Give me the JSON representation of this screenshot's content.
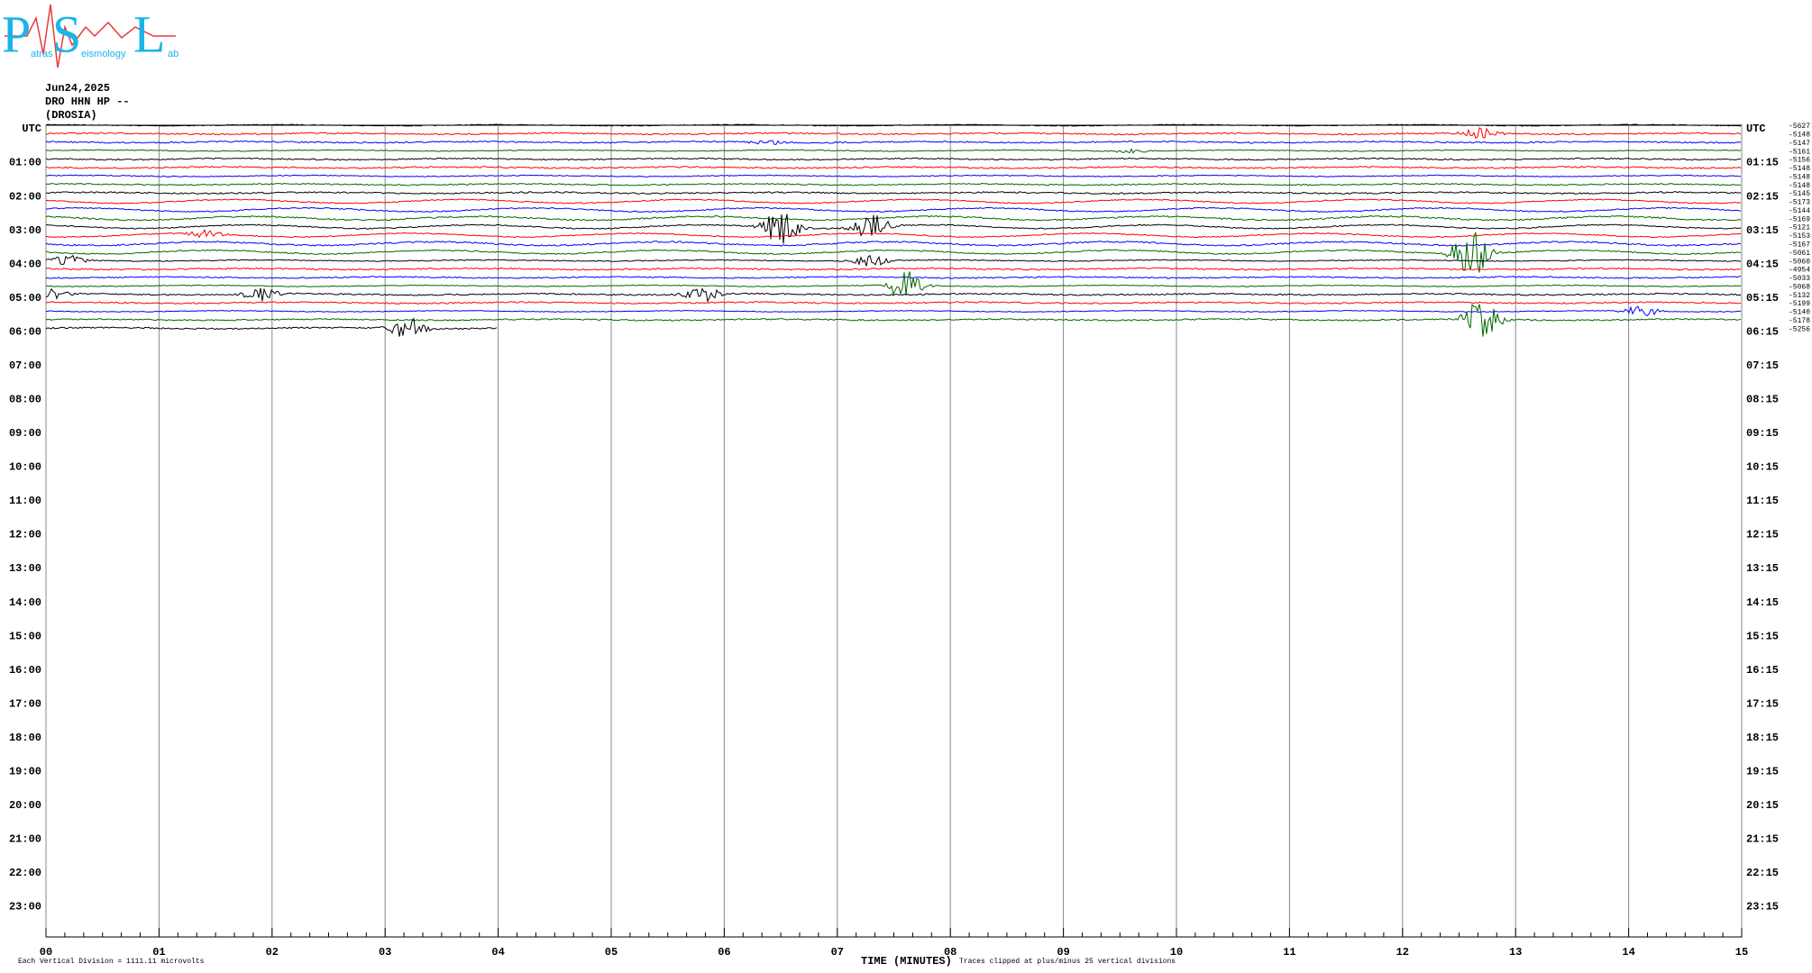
{
  "logo": {
    "letters": [
      "P",
      "S",
      "L"
    ],
    "words": [
      "atras",
      "eismology",
      "ab"
    ]
  },
  "header": {
    "date": "Jun24,2025",
    "station": "DRO HHN HP --",
    "location": "(DROSIA)"
  },
  "left_labels": [
    "UTC",
    "01:00",
    "02:00",
    "03:00",
    "04:00",
    "05:00",
    "06:00",
    "07:00",
    "08:00",
    "09:00",
    "10:00",
    "11:00",
    "12:00",
    "13:00",
    "14:00",
    "15:00",
    "16:00",
    "17:00",
    "18:00",
    "19:00",
    "20:00",
    "21:00",
    "22:00",
    "23:00"
  ],
  "right_labels": [
    "UTC",
    "01:15",
    "02:15",
    "03:15",
    "04:15",
    "05:15",
    "06:15",
    "07:15",
    "08:15",
    "09:15",
    "10:15",
    "11:15",
    "12:15",
    "13:15",
    "14:15",
    "15:15",
    "16:15",
    "17:15",
    "18:15",
    "19:15",
    "20:15",
    "21:15",
    "22:15",
    "23:15"
  ],
  "trace_offsets": [
    "-5627",
    "-5148",
    "-5147",
    "-5161",
    "-5156",
    "-5148",
    "-5148",
    "-5148",
    "-5145",
    "-5173",
    "-5144",
    "-5169",
    "-5121",
    "-5153",
    "-5167",
    "-5061",
    "-5060",
    "-4954",
    "-5033",
    "-5068",
    "-5132",
    "-5199",
    "-5140",
    "-5178",
    "-5256"
  ],
  "minute_labels": [
    "00",
    "01",
    "02",
    "03",
    "04",
    "05",
    "06",
    "07",
    "08",
    "09",
    "10",
    "11",
    "12",
    "13",
    "14",
    "15"
  ],
  "footer": {
    "scale": "Each Vertical Division = 1111.11 microvolts",
    "axis_title": "TIME (MINUTES)",
    "clip_note": "Traces clipped at plus/minus 25 vertical divisions"
  }
}
